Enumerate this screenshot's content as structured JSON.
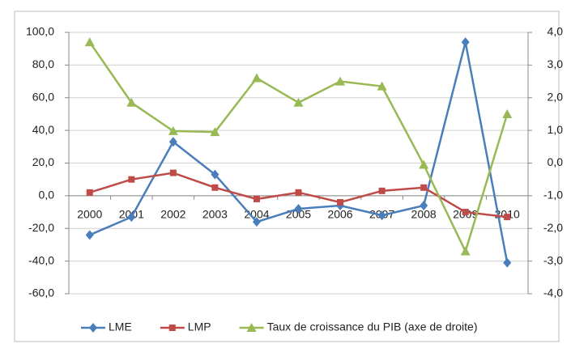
{
  "chart_data": {
    "type": "line",
    "categories": [
      "2000",
      "2001",
      "2002",
      "2003",
      "2004",
      "2005",
      "2006",
      "2007",
      "2008",
      "2009",
      "2010"
    ],
    "series": [
      {
        "name": "LME",
        "color": "#4a7ebb",
        "marker": "diamond",
        "values": [
          -24,
          -13,
          33,
          13,
          -16,
          -8,
          -6,
          -12,
          -6,
          94,
          -41
        ]
      },
      {
        "name": "LMP",
        "color": "#be4b48",
        "marker": "square",
        "values": [
          2,
          10,
          14,
          5,
          -2,
          2,
          -4,
          3,
          5,
          -10,
          -13
        ]
      },
      {
        "name": "Taux de croissance du PIB (axe de droite)",
        "color": "#98b954",
        "marker": "triangle",
        "axis": "y2",
        "values": [
          3.7,
          1.85,
          0.98,
          0.95,
          2.6,
          1.85,
          2.5,
          2.35,
          -0.05,
          -2.7,
          1.5
        ]
      }
    ],
    "ylim": [
      -60,
      100
    ],
    "yticks": [
      {
        "value": -60,
        "label": "-60,0"
      },
      {
        "value": -40,
        "label": "-40,0"
      },
      {
        "value": -20,
        "label": "-20,0"
      },
      {
        "value": 0,
        "label": "0,0"
      },
      {
        "value": 20,
        "label": "20,0"
      },
      {
        "value": 40,
        "label": "40,0"
      },
      {
        "value": 60,
        "label": "60,0"
      },
      {
        "value": 80,
        "label": "80,0"
      },
      {
        "value": 100,
        "label": "100,0"
      }
    ],
    "y2lim": [
      -4,
      4
    ],
    "y2ticks": [
      {
        "value": -4,
        "label": "-4,0"
      },
      {
        "value": -3,
        "label": "-3,0"
      },
      {
        "value": -2,
        "label": "-2,0"
      },
      {
        "value": -1,
        "label": "-1,0"
      },
      {
        "value": 0,
        "label": "0,0"
      },
      {
        "value": 1,
        "label": "1,0"
      },
      {
        "value": 2,
        "label": "2,0"
      },
      {
        "value": 3,
        "label": "3,0"
      },
      {
        "value": 4,
        "label": "4,0"
      }
    ],
    "grid": true,
    "legend": "bottom"
  }
}
